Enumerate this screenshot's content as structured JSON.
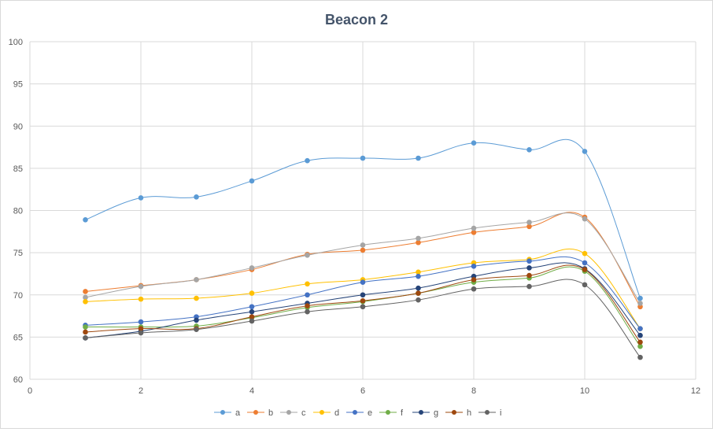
{
  "chart_data": {
    "type": "line",
    "title": "Beacon 2",
    "xlabel": "",
    "ylabel": "",
    "xlim": [
      0,
      12
    ],
    "ylim": [
      60,
      100
    ],
    "xticks": [
      0,
      2,
      4,
      6,
      8,
      10,
      12
    ],
    "yticks": [
      60,
      65,
      70,
      75,
      80,
      85,
      90,
      95,
      100
    ],
    "grid": true,
    "legend_position": "bottom",
    "x": [
      1,
      2,
      3,
      4,
      5,
      6,
      7,
      8,
      9,
      10,
      11
    ],
    "series": [
      {
        "name": "a",
        "color": "#5b9bd5",
        "values": [
          78.9,
          81.5,
          81.6,
          83.5,
          85.9,
          86.2,
          86.2,
          88.0,
          87.2,
          87.0,
          69.6
        ]
      },
      {
        "name": "b",
        "color": "#ed7d31",
        "values": [
          70.4,
          71.1,
          71.8,
          73.0,
          74.8,
          75.3,
          76.2,
          77.4,
          78.1,
          79.2,
          68.6
        ]
      },
      {
        "name": "c",
        "color": "#a5a5a5",
        "values": [
          69.7,
          71.0,
          71.8,
          73.2,
          74.7,
          75.9,
          76.7,
          77.9,
          78.6,
          79.0,
          69.0
        ]
      },
      {
        "name": "d",
        "color": "#ffc000",
        "values": [
          69.2,
          69.5,
          69.6,
          70.2,
          71.3,
          71.8,
          72.7,
          73.8,
          74.2,
          74.9,
          66.0
        ]
      },
      {
        "name": "e",
        "color": "#4472c4",
        "values": [
          66.4,
          66.8,
          67.4,
          68.6,
          70.0,
          71.5,
          72.2,
          73.4,
          74.0,
          73.8,
          66.0
        ]
      },
      {
        "name": "f",
        "color": "#70ad47",
        "values": [
          66.2,
          66.2,
          66.3,
          67.3,
          68.5,
          69.2,
          70.2,
          71.5,
          72.0,
          72.8,
          63.9
        ]
      },
      {
        "name": "g",
        "color": "#264478",
        "values": [
          64.9,
          65.7,
          67.0,
          68.0,
          69.0,
          70.0,
          70.8,
          72.2,
          73.2,
          73.1,
          65.2
        ]
      },
      {
        "name": "h",
        "color": "#9e480e",
        "values": [
          65.6,
          66.0,
          66.0,
          67.4,
          68.7,
          69.3,
          70.2,
          71.8,
          72.3,
          73.0,
          64.4
        ]
      },
      {
        "name": "i",
        "color": "#636363",
        "values": [
          64.9,
          65.5,
          65.9,
          66.9,
          68.0,
          68.6,
          69.4,
          70.7,
          71.0,
          71.2,
          62.6
        ]
      }
    ]
  }
}
